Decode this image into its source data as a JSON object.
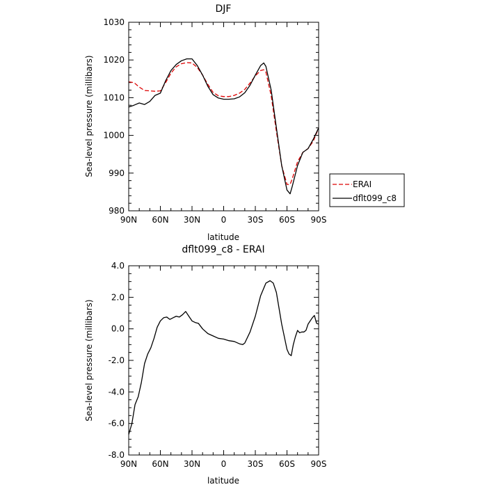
{
  "chart_data": [
    {
      "type": "line",
      "title": "DJF",
      "xlabel": "latitude",
      "ylabel": "Sea-level pressure (millibars)",
      "xlim": [
        90,
        -90
      ],
      "ylim": [
        980,
        1030
      ],
      "x_ticks": [
        {
          "value": 90,
          "label": "90N"
        },
        {
          "value": 60,
          "label": "60N"
        },
        {
          "value": 30,
          "label": "30N"
        },
        {
          "value": 0,
          "label": "0"
        },
        {
          "value": -30,
          "label": "30S"
        },
        {
          "value": -60,
          "label": "60S"
        },
        {
          "value": -90,
          "label": "90S"
        }
      ],
      "y_ticks": [
        {
          "value": 980,
          "label": "980"
        },
        {
          "value": 990,
          "label": "990"
        },
        {
          "value": 1000,
          "label": "1000"
        },
        {
          "value": 1010,
          "label": "1010"
        },
        {
          "value": 1020,
          "label": "1020"
        },
        {
          "value": 1030,
          "label": "1030"
        }
      ],
      "grid": false,
      "legend_position": "right",
      "series": [
        {
          "name": "ERAI",
          "color": "#dd0000",
          "style": "dashed",
          "x": [
            90,
            85,
            80,
            75,
            70,
            65,
            60,
            55,
            50,
            45,
            40,
            35,
            30,
            25,
            20,
            15,
            10,
            5,
            0,
            -5,
            -10,
            -15,
            -20,
            -25,
            -30,
            -35,
            -38,
            -40,
            -45,
            -50,
            -55,
            -60,
            -63,
            -65,
            -70,
            -75,
            -80,
            -85,
            -90
          ],
          "y": [
            1014.2,
            1014.0,
            1012.8,
            1011.9,
            1011.8,
            1011.7,
            1011.8,
            1014.0,
            1016.5,
            1018.2,
            1019.0,
            1019.3,
            1019.2,
            1018.0,
            1016.0,
            1013.5,
            1011.4,
            1010.5,
            1010.3,
            1010.3,
            1010.6,
            1011.2,
            1012.2,
            1013.9,
            1015.8,
            1017.2,
            1017.4,
            1016.8,
            1010.5,
            1001.0,
            992.0,
            987.0,
            987.0,
            988.5,
            993.0,
            995.5,
            996.5,
            998.5,
            1002.0
          ]
        },
        {
          "name": "dflt099_c8",
          "color": "#000000",
          "style": "solid",
          "x": [
            90,
            85,
            80,
            75,
            70,
            65,
            60,
            55,
            50,
            45,
            40,
            35,
            30,
            25,
            20,
            15,
            10,
            5,
            0,
            -5,
            -10,
            -15,
            -20,
            -25,
            -30,
            -35,
            -38,
            -40,
            -45,
            -50,
            -55,
            -60,
            -63,
            -65,
            -70,
            -75,
            -80,
            -85,
            -90
          ],
          "y": [
            1007.5,
            1008.0,
            1008.6,
            1008.2,
            1009.0,
            1010.6,
            1011.2,
            1014.5,
            1017.2,
            1018.8,
            1019.8,
            1020.3,
            1020.3,
            1018.5,
            1016.0,
            1013.0,
            1010.8,
            1009.9,
            1009.6,
            1009.6,
            1009.7,
            1010.2,
            1011.3,
            1013.3,
            1016.0,
            1018.5,
            1019.2,
            1018.3,
            1012.0,
            1002.0,
            992.0,
            985.5,
            984.5,
            986.5,
            992.0,
            995.5,
            996.5,
            999.0,
            1002.0
          ]
        }
      ]
    },
    {
      "type": "line",
      "title": "dflt099_c8 - ERAI",
      "xlabel": "latitude",
      "ylabel": "Sea-level pressure (millibars)",
      "xlim": [
        90,
        -90
      ],
      "ylim": [
        -8,
        4
      ],
      "x_ticks": [
        {
          "value": 90,
          "label": "90N"
        },
        {
          "value": 60,
          "label": "60N"
        },
        {
          "value": 30,
          "label": "30N"
        },
        {
          "value": 0,
          "label": "0"
        },
        {
          "value": -30,
          "label": "30S"
        },
        {
          "value": -60,
          "label": "60S"
        },
        {
          "value": -90,
          "label": "90S"
        }
      ],
      "y_ticks": [
        {
          "value": 4,
          "label": "4.0"
        },
        {
          "value": 2,
          "label": "2.0"
        },
        {
          "value": 0,
          "label": "0.0"
        },
        {
          "value": -2,
          "label": "-2.0"
        },
        {
          "value": -4,
          "label": "-4.0"
        },
        {
          "value": -6,
          "label": "-6.0"
        },
        {
          "value": -8,
          "label": "-8.0"
        }
      ],
      "grid": false,
      "series": [
        {
          "color": "#000000",
          "style": "solid",
          "x": [
            90,
            87,
            84,
            81,
            78,
            75,
            72,
            69,
            66,
            63,
            60,
            57,
            54,
            51,
            48,
            45,
            42,
            39,
            36,
            33,
            30,
            27,
            24,
            20,
            15,
            10,
            5,
            0,
            -5,
            -10,
            -15,
            -18,
            -20,
            -25,
            -30,
            -35,
            -40,
            -44,
            -47,
            -50,
            -55,
            -60,
            -62,
            -64,
            -66,
            -68,
            -70,
            -72,
            -74,
            -76,
            -78,
            -80,
            -82,
            -84,
            -86,
            -88,
            -90
          ],
          "y": [
            -6.7,
            -6.0,
            -4.8,
            -4.3,
            -3.4,
            -2.2,
            -1.6,
            -1.2,
            -0.6,
            0.1,
            0.5,
            0.7,
            0.75,
            0.6,
            0.7,
            0.8,
            0.75,
            0.9,
            1.1,
            0.8,
            0.5,
            0.4,
            0.35,
            0.0,
            -0.3,
            -0.45,
            -0.6,
            -0.65,
            -0.75,
            -0.8,
            -0.95,
            -1.0,
            -0.9,
            -0.2,
            0.8,
            2.1,
            2.9,
            3.05,
            2.9,
            2.3,
            0.3,
            -1.3,
            -1.6,
            -1.7,
            -1.0,
            -0.5,
            -0.1,
            -0.25,
            -0.2,
            -0.2,
            -0.1,
            0.3,
            0.5,
            0.7,
            0.85,
            0.35,
            0.3
          ]
        }
      ]
    }
  ]
}
